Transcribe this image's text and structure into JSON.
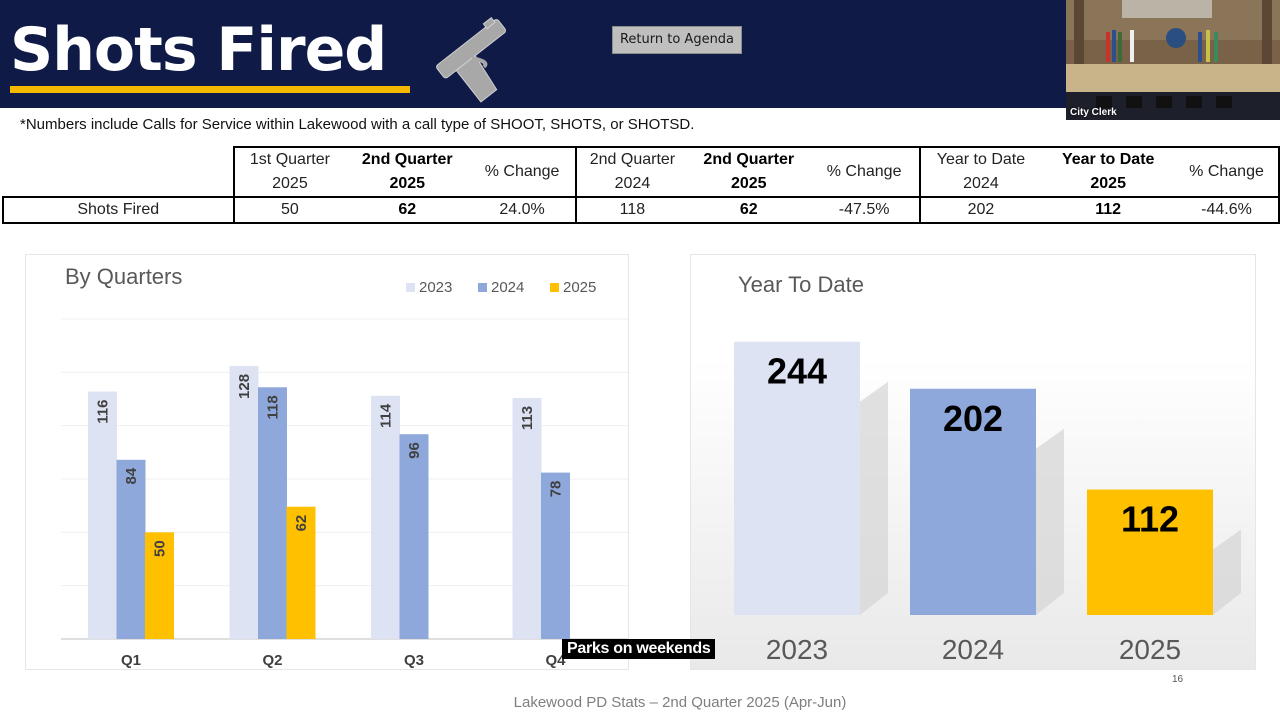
{
  "header": {
    "title": "Shots Fired",
    "gun_icon": "handgun-icon",
    "return_button": "Return to Agenda"
  },
  "video": {
    "label": "City Clerk"
  },
  "note": "*Numbers include Calls for Service within Lakewood with a call type of SHOOT, SHOTS, or SHOTSD.",
  "table": {
    "groups": [
      {
        "col1": [
          "1st Quarter",
          "2025"
        ],
        "col2": [
          "2nd Quarter",
          "2025"
        ],
        "col3": "% Change"
      },
      {
        "col1": [
          "2nd Quarter",
          "2024"
        ],
        "col2": [
          "2nd Quarter",
          "2025"
        ],
        "col3": "% Change"
      },
      {
        "col1": [
          "Year to Date",
          "2024"
        ],
        "col2": [
          "Year to Date",
          "2025"
        ],
        "col3": "% Change"
      }
    ],
    "row_label": "Shots Fired",
    "values": [
      "50",
      "62",
      "24.0%",
      "118",
      "62",
      "-47.5%",
      "202",
      "112",
      "-44.6%"
    ]
  },
  "chart_data": [
    {
      "type": "bar",
      "title": "By Quarters",
      "categories": [
        "Q1",
        "Q2",
        "Q3",
        "Q4"
      ],
      "series": [
        {
          "name": "2023",
          "values": [
            116,
            128,
            114,
            113
          ],
          "color": "#dde3f3"
        },
        {
          "name": "2024",
          "values": [
            84,
            118,
            96,
            78
          ],
          "color": "#8fa8dc"
        },
        {
          "name": "2025",
          "values": [
            50,
            62,
            null,
            null
          ],
          "color": "#ffc000"
        }
      ],
      "ylim": [
        0,
        150
      ],
      "grid": true,
      "legend": "top-right"
    },
    {
      "type": "bar",
      "title": "Year To Date",
      "categories": [
        "2023",
        "2024",
        "2025"
      ],
      "values": [
        244,
        202,
        112
      ],
      "colors": [
        "#dde3f3",
        "#8fa8dc",
        "#ffc000"
      ],
      "ylim": [
        0,
        300
      ]
    }
  ],
  "caption": "Parks on weekends",
  "footer": "Lakewood PD Stats – 2nd Quarter 2025 (Apr-Jun)",
  "page_number": "16"
}
